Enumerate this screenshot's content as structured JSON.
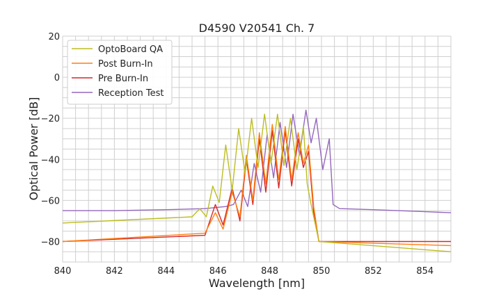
{
  "chart_data": {
    "type": "line",
    "title": "D4590 V20541 Ch. 7",
    "xlabel": "Wavelength [nm]",
    "ylabel": "Optical Power [dB]",
    "xlim": [
      840,
      855
    ],
    "ylim": [
      -90,
      20
    ],
    "xticks": [
      840,
      842,
      844,
      846,
      848,
      850,
      852,
      854
    ],
    "xtick_labels": [
      "840",
      "842",
      "844",
      "846",
      "848",
      "850",
      "852",
      "854"
    ],
    "yticks": [
      20,
      0,
      -20,
      -40,
      -60,
      -80
    ],
    "ytick_labels": [
      "20",
      "0",
      "−20",
      "−40",
      "−60",
      "−80"
    ],
    "grid": true,
    "legend_position": "top-left",
    "series": [
      {
        "name": "OptoBoard QA",
        "color": "#bcbd22",
        "x": [
          840,
          845.0,
          845.3,
          845.55,
          845.8,
          846.05,
          846.3,
          846.55,
          846.8,
          847.05,
          847.3,
          847.55,
          847.8,
          848.05,
          848.3,
          848.55,
          848.8,
          849.05,
          849.3,
          849.45,
          849.6,
          849.75,
          849.9,
          855
        ],
        "y": [
          -71,
          -68,
          -64,
          -68,
          -53,
          -61,
          -33,
          -55,
          -25,
          -47,
          -20,
          -44,
          -18,
          -42,
          -18,
          -43,
          -20,
          -45,
          -24,
          -52,
          -62,
          -71,
          -80,
          -85
        ]
      },
      {
        "name": "Post Burn-In",
        "color": "#ff7f0e",
        "x": [
          840,
          845.5,
          845.9,
          846.2,
          846.55,
          846.85,
          847.1,
          847.35,
          847.6,
          847.85,
          848.1,
          848.35,
          848.6,
          848.85,
          849.1,
          849.3,
          849.5,
          849.7,
          849.9,
          855
        ],
        "y": [
          -80,
          -76,
          -66,
          -74,
          -56,
          -68,
          -38,
          -60,
          -27,
          -52,
          -23,
          -50,
          -24,
          -50,
          -27,
          -42,
          -33,
          -63,
          -80,
          -82
        ]
      },
      {
        "name": "Pre Burn-In",
        "color": "#d62728",
        "x": [
          840,
          845.5,
          845.9,
          846.2,
          846.55,
          846.85,
          847.1,
          847.35,
          847.6,
          847.85,
          848.1,
          848.35,
          848.6,
          848.85,
          849.1,
          849.3,
          849.5,
          849.7,
          849.9,
          855
        ],
        "y": [
          -80,
          -77,
          -62,
          -72,
          -54,
          -70,
          -40,
          -62,
          -30,
          -56,
          -26,
          -54,
          -26,
          -53,
          -30,
          -44,
          -36,
          -66,
          -80,
          -80
        ]
      },
      {
        "name": "Reception Test",
        "color": "#9467bd",
        "x": [
          840,
          842,
          844,
          845.5,
          846.3,
          846.6,
          846.9,
          847.15,
          847.4,
          847.65,
          847.9,
          848.15,
          848.4,
          848.65,
          848.9,
          849.15,
          849.4,
          849.6,
          849.8,
          850.05,
          850.3,
          850.45,
          850.7,
          852,
          854,
          855
        ],
        "y": [
          -65,
          -65,
          -64.5,
          -64,
          -63,
          -62,
          -55,
          -63,
          -42,
          -56,
          -28,
          -49,
          -22,
          -44,
          -18,
          -38,
          -16,
          -32,
          -20,
          -45,
          -30,
          -62,
          -64,
          -64.5,
          -65.5,
          -66
        ]
      }
    ]
  }
}
